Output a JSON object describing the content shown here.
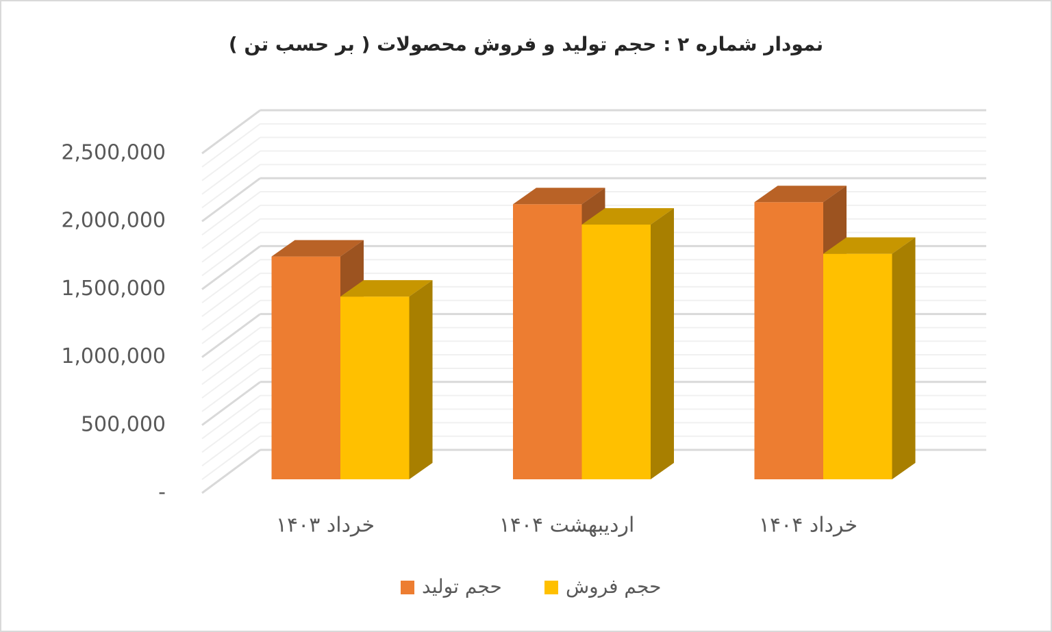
{
  "chart_data": {
    "type": "bar3d",
    "title": "نمودار شماره ۲ : حجم  تولید و فروش محصولات ( بر حسب تن )",
    "categories": [
      "خرداد ۱۴۰۳",
      "اردیبهشت ۱۴۰۴",
      "خرداد ۱۴۰۴"
    ],
    "series": [
      {
        "name": "حجم تولید",
        "color": "#ED7D31",
        "values": [
          1640000,
          2025000,
          2040000
        ]
      },
      {
        "name": "حجم فروش",
        "color": "#FFC000",
        "values": [
          1345000,
          1875000,
          1660000
        ]
      }
    ],
    "ylim": [
      0,
      2500000
    ],
    "yticks": [
      {
        "value": 0,
        "label": "-"
      },
      {
        "value": 500000,
        "label": "500,000"
      },
      {
        "value": 1000000,
        "label": "1,000,000"
      },
      {
        "value": 1500000,
        "label": "1,500,000"
      },
      {
        "value": 2000000,
        "label": "2,000,000"
      },
      {
        "value": 2500000,
        "label": "2,500,000"
      }
    ],
    "grid": true
  }
}
